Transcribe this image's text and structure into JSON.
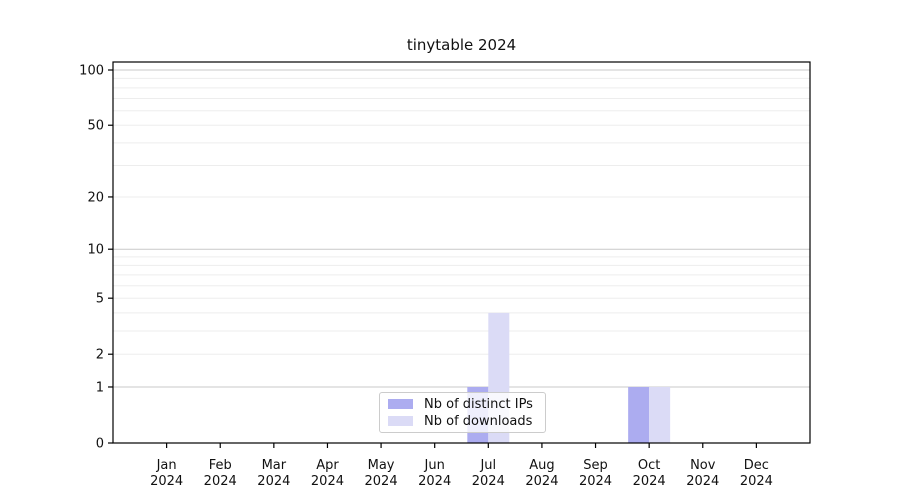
{
  "chart_data": {
    "type": "bar",
    "title": "tinytable 2024",
    "categories": [
      "Jan",
      "Feb",
      "Mar",
      "Apr",
      "May",
      "Jun",
      "Jul",
      "Aug",
      "Sep",
      "Oct",
      "Nov",
      "Dec"
    ],
    "year_label": "2024",
    "series": [
      {
        "name": "Nb of distinct IPs",
        "color": "#acacf0",
        "values": [
          0,
          0,
          0,
          0,
          0,
          0,
          1,
          0,
          0,
          1,
          0,
          0
        ]
      },
      {
        "name": "Nb of downloads",
        "color": "#dbdbf6",
        "values": [
          0,
          0,
          0,
          0,
          0,
          0,
          4,
          0,
          0,
          1,
          0,
          0
        ]
      }
    ],
    "xlabel": "",
    "ylabel": "",
    "y_axis": {
      "scale": "log1p",
      "ticks": [
        0,
        1,
        2,
        5,
        10,
        20,
        50,
        100
      ],
      "ylim": [
        0,
        110
      ],
      "major_gridlines": [
        1,
        10,
        100
      ],
      "minor_gridlines": [
        2,
        3,
        4,
        5,
        6,
        7,
        8,
        9,
        20,
        30,
        40,
        50,
        60,
        70,
        80,
        90
      ]
    },
    "legend": {
      "position": "inside-bottom-center",
      "entries": [
        "Nb of distinct IPs",
        "Nb of downloads"
      ]
    },
    "colors": {
      "axis": "#000000",
      "major_grid": "#c9c9c9",
      "minor_grid": "#ededed",
      "text": "#111111",
      "legend_border": "#cccccc"
    },
    "grid": true
  }
}
